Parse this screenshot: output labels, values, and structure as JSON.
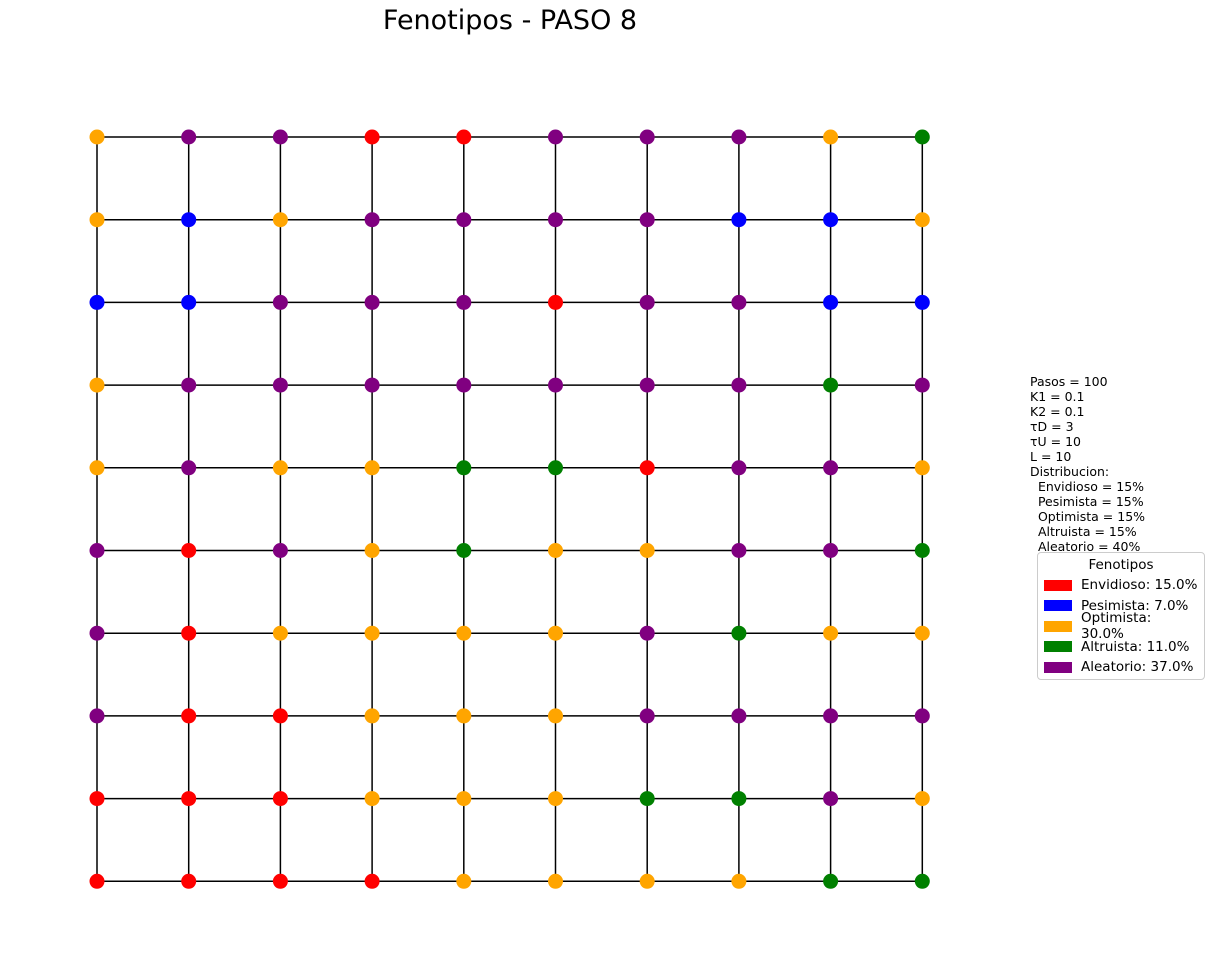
{
  "title": "Fenotipos - PASO 8",
  "colors": {
    "Envidioso": "#ff0000",
    "Pesimista": "#0000ff",
    "Optimista": "#ffa500",
    "Altruista": "#008000",
    "Aleatorio": "#800080"
  },
  "grid": {
    "size": 10,
    "rows": [
      [
        "Optimista",
        "Aleatorio",
        "Aleatorio",
        "Envidioso",
        "Envidioso",
        "Aleatorio",
        "Aleatorio",
        "Aleatorio",
        "Optimista",
        "Altruista"
      ],
      [
        "Optimista",
        "Pesimista",
        "Optimista",
        "Aleatorio",
        "Aleatorio",
        "Aleatorio",
        "Aleatorio",
        "Pesimista",
        "Pesimista",
        "Optimista"
      ],
      [
        "Pesimista",
        "Pesimista",
        "Aleatorio",
        "Aleatorio",
        "Aleatorio",
        "Envidioso",
        "Aleatorio",
        "Aleatorio",
        "Pesimista",
        "Pesimista"
      ],
      [
        "Optimista",
        "Aleatorio",
        "Aleatorio",
        "Aleatorio",
        "Aleatorio",
        "Aleatorio",
        "Aleatorio",
        "Aleatorio",
        "Altruista",
        "Aleatorio"
      ],
      [
        "Optimista",
        "Aleatorio",
        "Optimista",
        "Optimista",
        "Altruista",
        "Altruista",
        "Envidioso",
        "Aleatorio",
        "Aleatorio",
        "Optimista"
      ],
      [
        "Aleatorio",
        "Envidioso",
        "Aleatorio",
        "Optimista",
        "Altruista",
        "Optimista",
        "Optimista",
        "Aleatorio",
        "Aleatorio",
        "Altruista"
      ],
      [
        "Aleatorio",
        "Envidioso",
        "Optimista",
        "Optimista",
        "Optimista",
        "Optimista",
        "Aleatorio",
        "Altruista",
        "Optimista",
        "Optimista"
      ],
      [
        "Aleatorio",
        "Envidioso",
        "Envidioso",
        "Optimista",
        "Optimista",
        "Optimista",
        "Aleatorio",
        "Aleatorio",
        "Aleatorio",
        "Aleatorio"
      ],
      [
        "Envidioso",
        "Envidioso",
        "Envidioso",
        "Optimista",
        "Optimista",
        "Optimista",
        "Altruista",
        "Altruista",
        "Aleatorio",
        "Optimista"
      ],
      [
        "Envidioso",
        "Envidioso",
        "Envidioso",
        "Envidioso",
        "Optimista",
        "Optimista",
        "Optimista",
        "Optimista",
        "Altruista",
        "Altruista"
      ]
    ]
  },
  "params": [
    "Pasos = 100",
    "K1 = 0.1",
    "K2 = 0.1",
    "τD = 3",
    "τU = 10",
    "L = 10",
    "Distribucion:",
    "  Envidioso = 15%",
    "  Pesimista = 15%",
    "  Optimista = 15%",
    "  Altruista = 15%",
    "  Aleatorio = 40%"
  ],
  "legend": {
    "title": "Fenotipos",
    "entries": [
      {
        "phenotype": "Envidioso",
        "label": "Envidioso: 15.0%"
      },
      {
        "phenotype": "Pesimista",
        "label": "Pesimista: 7.0%"
      },
      {
        "phenotype": "Optimista",
        "label": "Optimista: 30.0%"
      },
      {
        "phenotype": "Altruista",
        "label": "Altruista: 11.0%"
      },
      {
        "phenotype": "Aleatorio",
        "label": "Aleatorio: 37.0%"
      }
    ]
  }
}
